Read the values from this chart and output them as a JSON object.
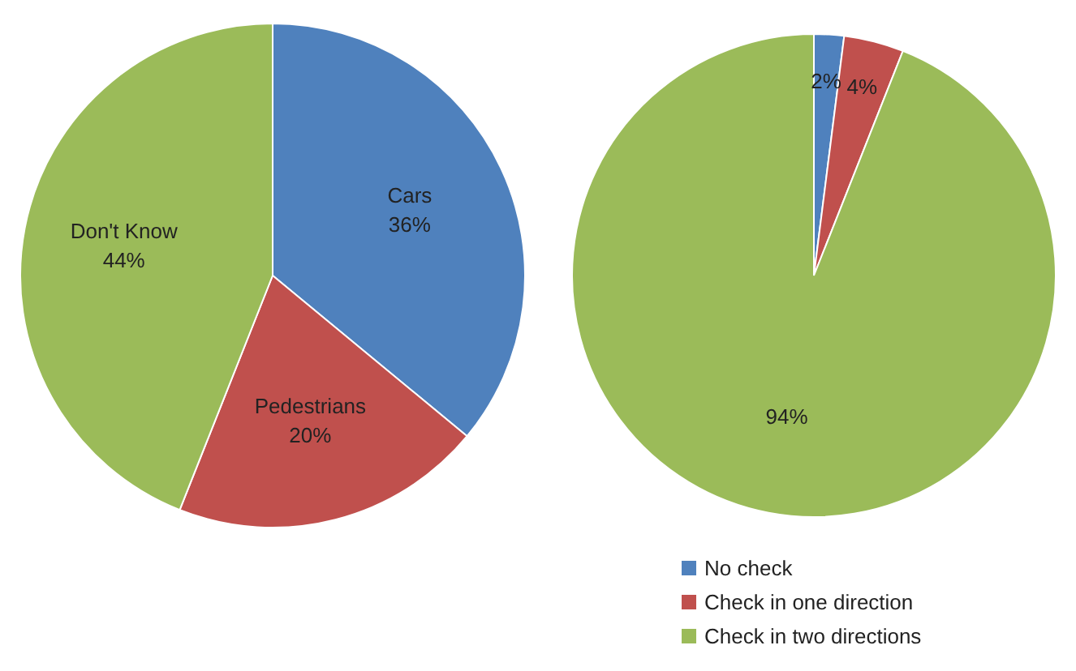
{
  "chart_data": [
    {
      "type": "pie",
      "categories": [
        "Cars",
        "Pedestrians",
        "Don't Know"
      ],
      "values": [
        36,
        20,
        44
      ],
      "colors": [
        "#4f81bd",
        "#c0504d",
        "#9bbb59"
      ],
      "value_labels": [
        "36%",
        "20%",
        "44%"
      ]
    },
    {
      "type": "pie",
      "categories": [
        "No check",
        "Check in one direction",
        "Check in two directions"
      ],
      "values": [
        2,
        4,
        94
      ],
      "colors": [
        "#4f81bd",
        "#c0504d",
        "#9bbb59"
      ],
      "value_labels": [
        "2%",
        "4%",
        "94%"
      ],
      "legend": "bottom"
    }
  ]
}
